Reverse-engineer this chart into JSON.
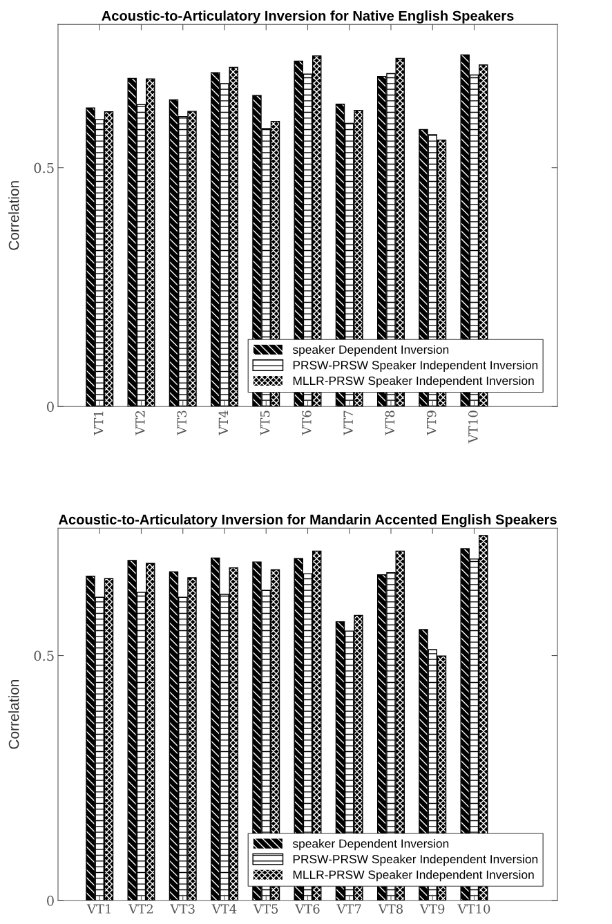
{
  "chart_data": [
    {
      "type": "bar",
      "title": "Acoustic-to-Articulatory Inversion for Native English Speakers",
      "ylabel": "Correlation",
      "categories": [
        "VT1",
        "VT2",
        "VT3",
        "VT4",
        "VT5",
        "VT6",
        "VT7",
        "VT8",
        "VT9",
        "VT10"
      ],
      "series": [
        {
          "name": "speaker Dependent Inversion",
          "color": "#000000",
          "values": [
            0.625,
            0.687,
            0.642,
            0.699,
            0.651,
            0.723,
            0.633,
            0.691,
            0.58,
            0.736
          ]
        },
        {
          "name": "PRSW-PRSW Speaker Independent Inversion",
          "color": "#ffffff",
          "values": [
            0.601,
            0.632,
            0.607,
            0.676,
            0.582,
            0.696,
            0.593,
            0.697,
            0.569,
            0.694
          ]
        },
        {
          "name": "MLLR-PRSW Speaker Independent Inversion",
          "color": "#000000",
          "values": [
            0.617,
            0.686,
            0.618,
            0.71,
            0.597,
            0.734,
            0.62,
            0.729,
            0.558,
            0.715
          ]
        }
      ],
      "ylim": [
        0,
        0.8
      ],
      "yticks": [
        0,
        0.5
      ],
      "grid": false,
      "legend": "bottom right"
    },
    {
      "type": "bar",
      "title": "Acoustic-to-Articulatory Inversion for Mandarin Accented English Speakers",
      "ylabel": "Correlation",
      "categories": [
        "VT1",
        "VT2",
        "VT3",
        "VT4",
        "VT5",
        "VT6",
        "VT7",
        "VT8",
        "VT9",
        "VT10"
      ],
      "series": [
        {
          "name": "speaker Dependent Inversion",
          "color": "#000000",
          "values": [
            0.662,
            0.694,
            0.671,
            0.699,
            0.691,
            0.698,
            0.569,
            0.665,
            0.553,
            0.718
          ]
        },
        {
          "name": "PRSW-PRSW Speaker Independent Inversion",
          "color": "#ffffff",
          "values": [
            0.619,
            0.629,
            0.619,
            0.625,
            0.633,
            0.667,
            0.55,
            0.669,
            0.512,
            0.697
          ]
        },
        {
          "name": "MLLR-PRSW Speaker Independent Inversion",
          "color": "#000000",
          "values": [
            0.657,
            0.688,
            0.659,
            0.679,
            0.675,
            0.713,
            0.582,
            0.713,
            0.499,
            0.745
          ]
        }
      ],
      "ylim": [
        0,
        0.76
      ],
      "yticks": [
        0,
        0.5
      ],
      "grid": false,
      "legend": "bottom right"
    }
  ]
}
